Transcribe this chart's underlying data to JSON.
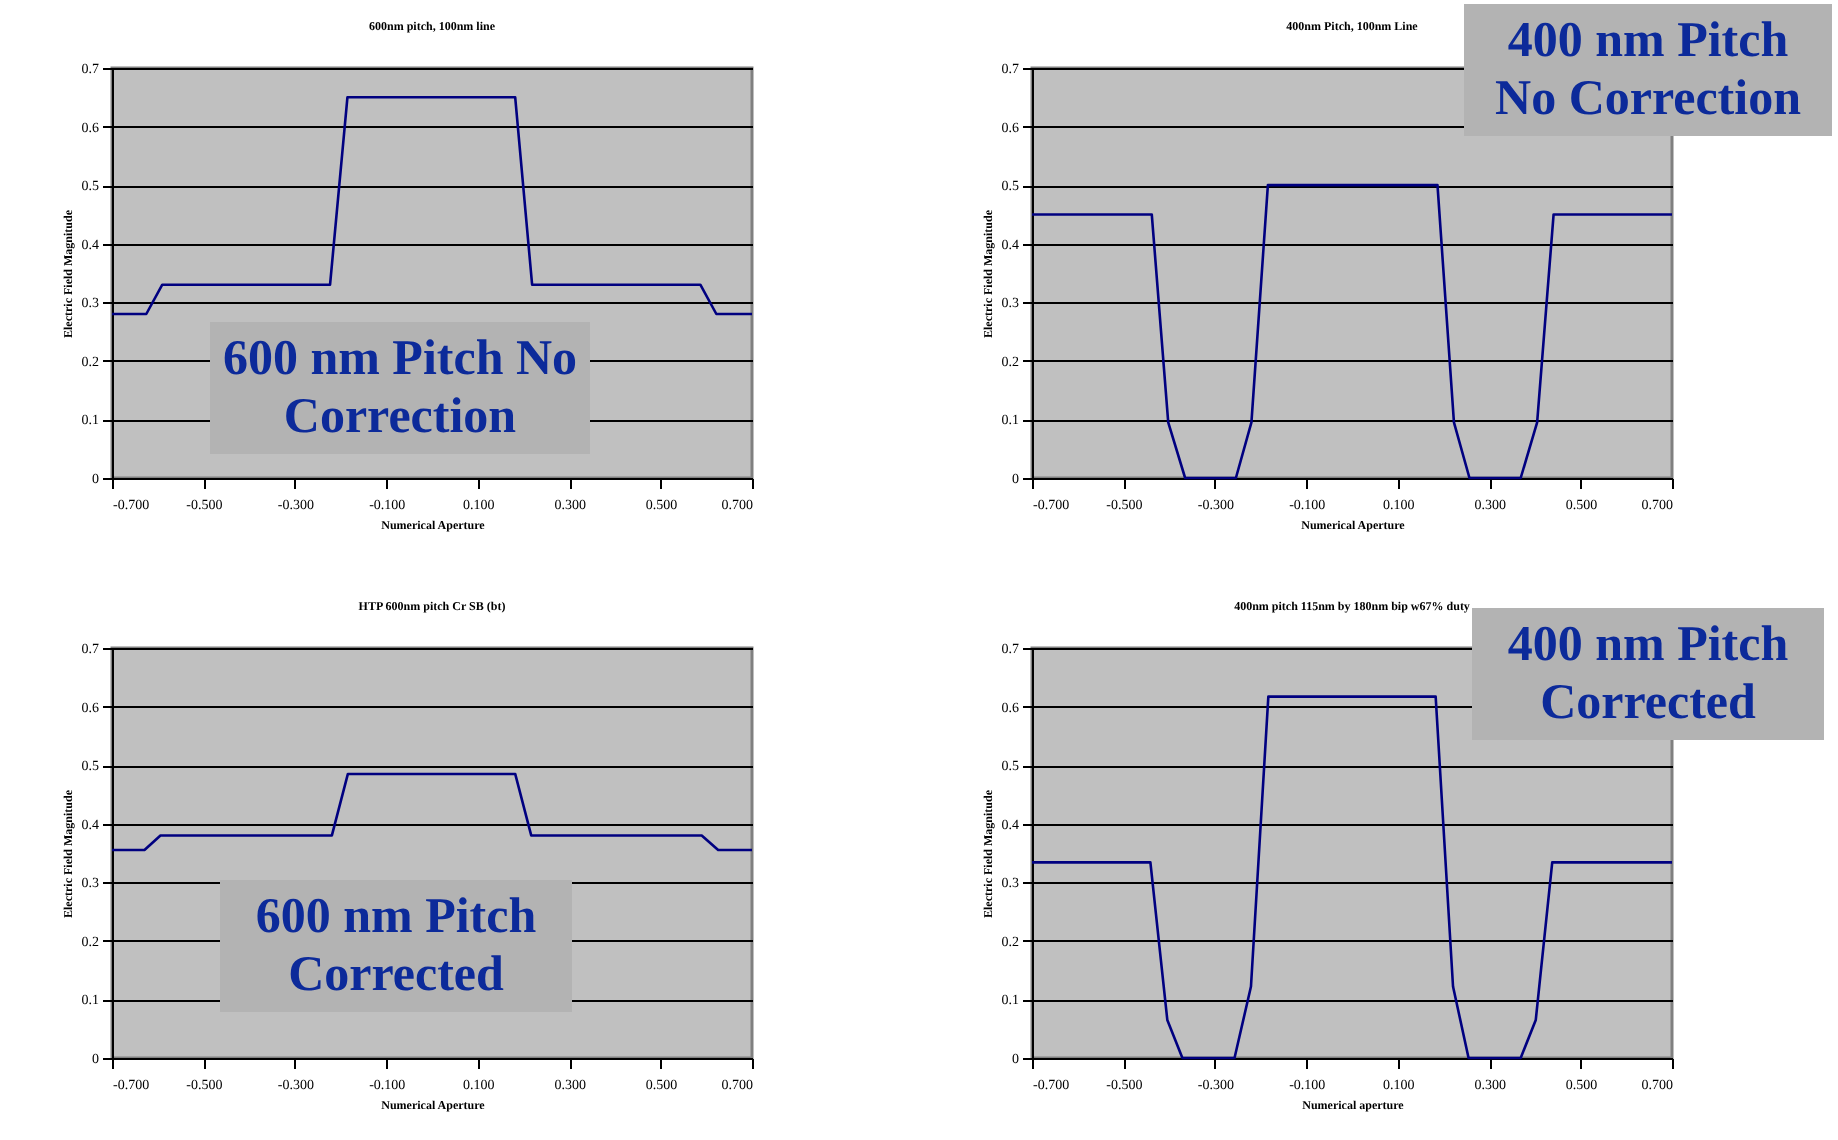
{
  "chart_data": [
    {
      "type": "line",
      "title": "600nm pitch, 100nm line",
      "xlabel": "Numerical Aperture",
      "ylabel": "Electric Field Magnitude",
      "annotations": [
        "600 nm Pitch No Correction"
      ],
      "x": [
        -0.7,
        -0.625,
        -0.59,
        -0.223,
        -0.185,
        0.182,
        0.219,
        0.587,
        0.622,
        0.7
      ],
      "series": [
        {
          "color": "#000080",
          "values": [
            0.28,
            0.28,
            0.33,
            0.33,
            0.65,
            0.65,
            0.33,
            0.33,
            0.28,
            0.28
          ]
        }
      ],
      "xlim": [
        -0.7,
        0.7
      ],
      "xticks": [
        {
          "value": -0.7,
          "label": "-0.700"
        },
        {
          "value": -0.5,
          "label": "-0.500"
        },
        {
          "value": -0.3,
          "label": "-0.300"
        },
        {
          "value": -0.1,
          "label": "-0.100"
        },
        {
          "value": 0.1,
          "label": "0.100"
        },
        {
          "value": 0.3,
          "label": "0.300"
        },
        {
          "value": 0.5,
          "label": "0.500"
        },
        {
          "value": 0.7,
          "label": "0.700"
        }
      ],
      "ylim": [
        0,
        0.7
      ],
      "yticks": [
        0,
        0.1,
        0.2,
        0.3,
        0.4,
        0.5,
        0.6,
        0.7
      ],
      "grid": "y"
    },
    {
      "type": "line",
      "title": "400nm Pitch, 100nm Line",
      "xlabel": "Numerical Aperture",
      "ylabel": "Electric Field Magnitude",
      "annotations": [
        "400 nm Pitch No Correction"
      ],
      "x": [
        -0.7,
        -0.438,
        -0.402,
        -0.365,
        -0.254,
        -0.22,
        -0.184,
        0.187,
        0.223,
        0.257,
        0.369,
        0.405,
        0.441,
        0.7
      ],
      "series": [
        {
          "color": "#000080",
          "values": [
            0.45,
            0.45,
            0.095,
            0,
            0,
            0.095,
            0.5,
            0.5,
            0.095,
            0,
            0,
            0.095,
            0.45,
            0.45
          ]
        }
      ],
      "xlim": [
        -0.7,
        0.7
      ],
      "xticks": [
        {
          "value": -0.7,
          "label": "-0.700"
        },
        {
          "value": -0.5,
          "label": "-0.500"
        },
        {
          "value": -0.3,
          "label": "-0.300"
        },
        {
          "value": -0.1,
          "label": "-0.100"
        },
        {
          "value": 0.1,
          "label": "0.100"
        },
        {
          "value": 0.3,
          "label": "0.300"
        },
        {
          "value": 0.5,
          "label": "0.500"
        },
        {
          "value": 0.7,
          "label": "0.700"
        }
      ],
      "ylim": [
        0,
        0.7
      ],
      "yticks": [
        0,
        0.1,
        0.2,
        0.3,
        0.4,
        0.5,
        0.6,
        0.7
      ],
      "grid": "y"
    },
    {
      "type": "line",
      "title": "HTP 600nm pitch Cr SB (bt)",
      "xlabel": "Numerical Aperture",
      "ylabel": "Electric Field Magnitude",
      "annotations": [
        "600 nm Pitch Corrected"
      ],
      "x": [
        -0.7,
        -0.629,
        -0.594,
        -0.219,
        -0.184,
        0.182,
        0.217,
        0.59,
        0.626,
        0.7
      ],
      "series": [
        {
          "color": "#000080",
          "values": [
            0.355,
            0.355,
            0.38,
            0.38,
            0.485,
            0.485,
            0.38,
            0.38,
            0.355,
            0.355
          ]
        }
      ],
      "xlim": [
        -0.7,
        0.7
      ],
      "xticks": [
        {
          "value": -0.7,
          "label": "-0.700"
        },
        {
          "value": -0.5,
          "label": "-0.500"
        },
        {
          "value": -0.3,
          "label": "-0.300"
        },
        {
          "value": -0.1,
          "label": "-0.100"
        },
        {
          "value": 0.1,
          "label": "0.100"
        },
        {
          "value": 0.3,
          "label": "0.300"
        },
        {
          "value": 0.5,
          "label": "0.500"
        },
        {
          "value": 0.7,
          "label": "0.700"
        }
      ],
      "ylim": [
        0,
        0.7
      ],
      "yticks": [
        0,
        0.1,
        0.2,
        0.3,
        0.4,
        0.5,
        0.6,
        0.7
      ],
      "grid": "y"
    },
    {
      "type": "line",
      "title": "400nm pitch 115nm by 180nm bip w67% duty",
      "xlabel": "Numerical aperture",
      "ylabel": "Electric Field Magnitude",
      "annotations": [
        "400 nm Pitch Corrected"
      ],
      "x": [
        -0.7,
        -0.441,
        -0.404,
        -0.371,
        -0.257,
        -0.221,
        -0.183,
        0.183,
        0.221,
        0.255,
        0.369,
        0.402,
        0.438,
        0.7
      ],
      "series": [
        {
          "color": "#000080",
          "values": [
            0.334,
            0.334,
            0.065,
            0,
            0,
            0.122,
            0.617,
            0.617,
            0.122,
            0,
            0,
            0.065,
            0.334,
            0.334
          ]
        }
      ],
      "xlim": [
        -0.7,
        0.7
      ],
      "xticks": [
        {
          "value": -0.7,
          "label": "-0.700"
        },
        {
          "value": -0.5,
          "label": "-0.500"
        },
        {
          "value": -0.3,
          "label": "-0.300"
        },
        {
          "value": -0.1,
          "label": "-0.100"
        },
        {
          "value": 0.1,
          "label": "0.100"
        },
        {
          "value": 0.3,
          "label": "0.300"
        },
        {
          "value": 0.5,
          "label": "0.500"
        },
        {
          "value": 0.7,
          "label": "0.700"
        }
      ],
      "ylim": [
        0,
        0.7
      ],
      "yticks": [
        0,
        0.1,
        0.2,
        0.3,
        0.4,
        0.5,
        0.6,
        0.7
      ],
      "grid": "y"
    }
  ]
}
